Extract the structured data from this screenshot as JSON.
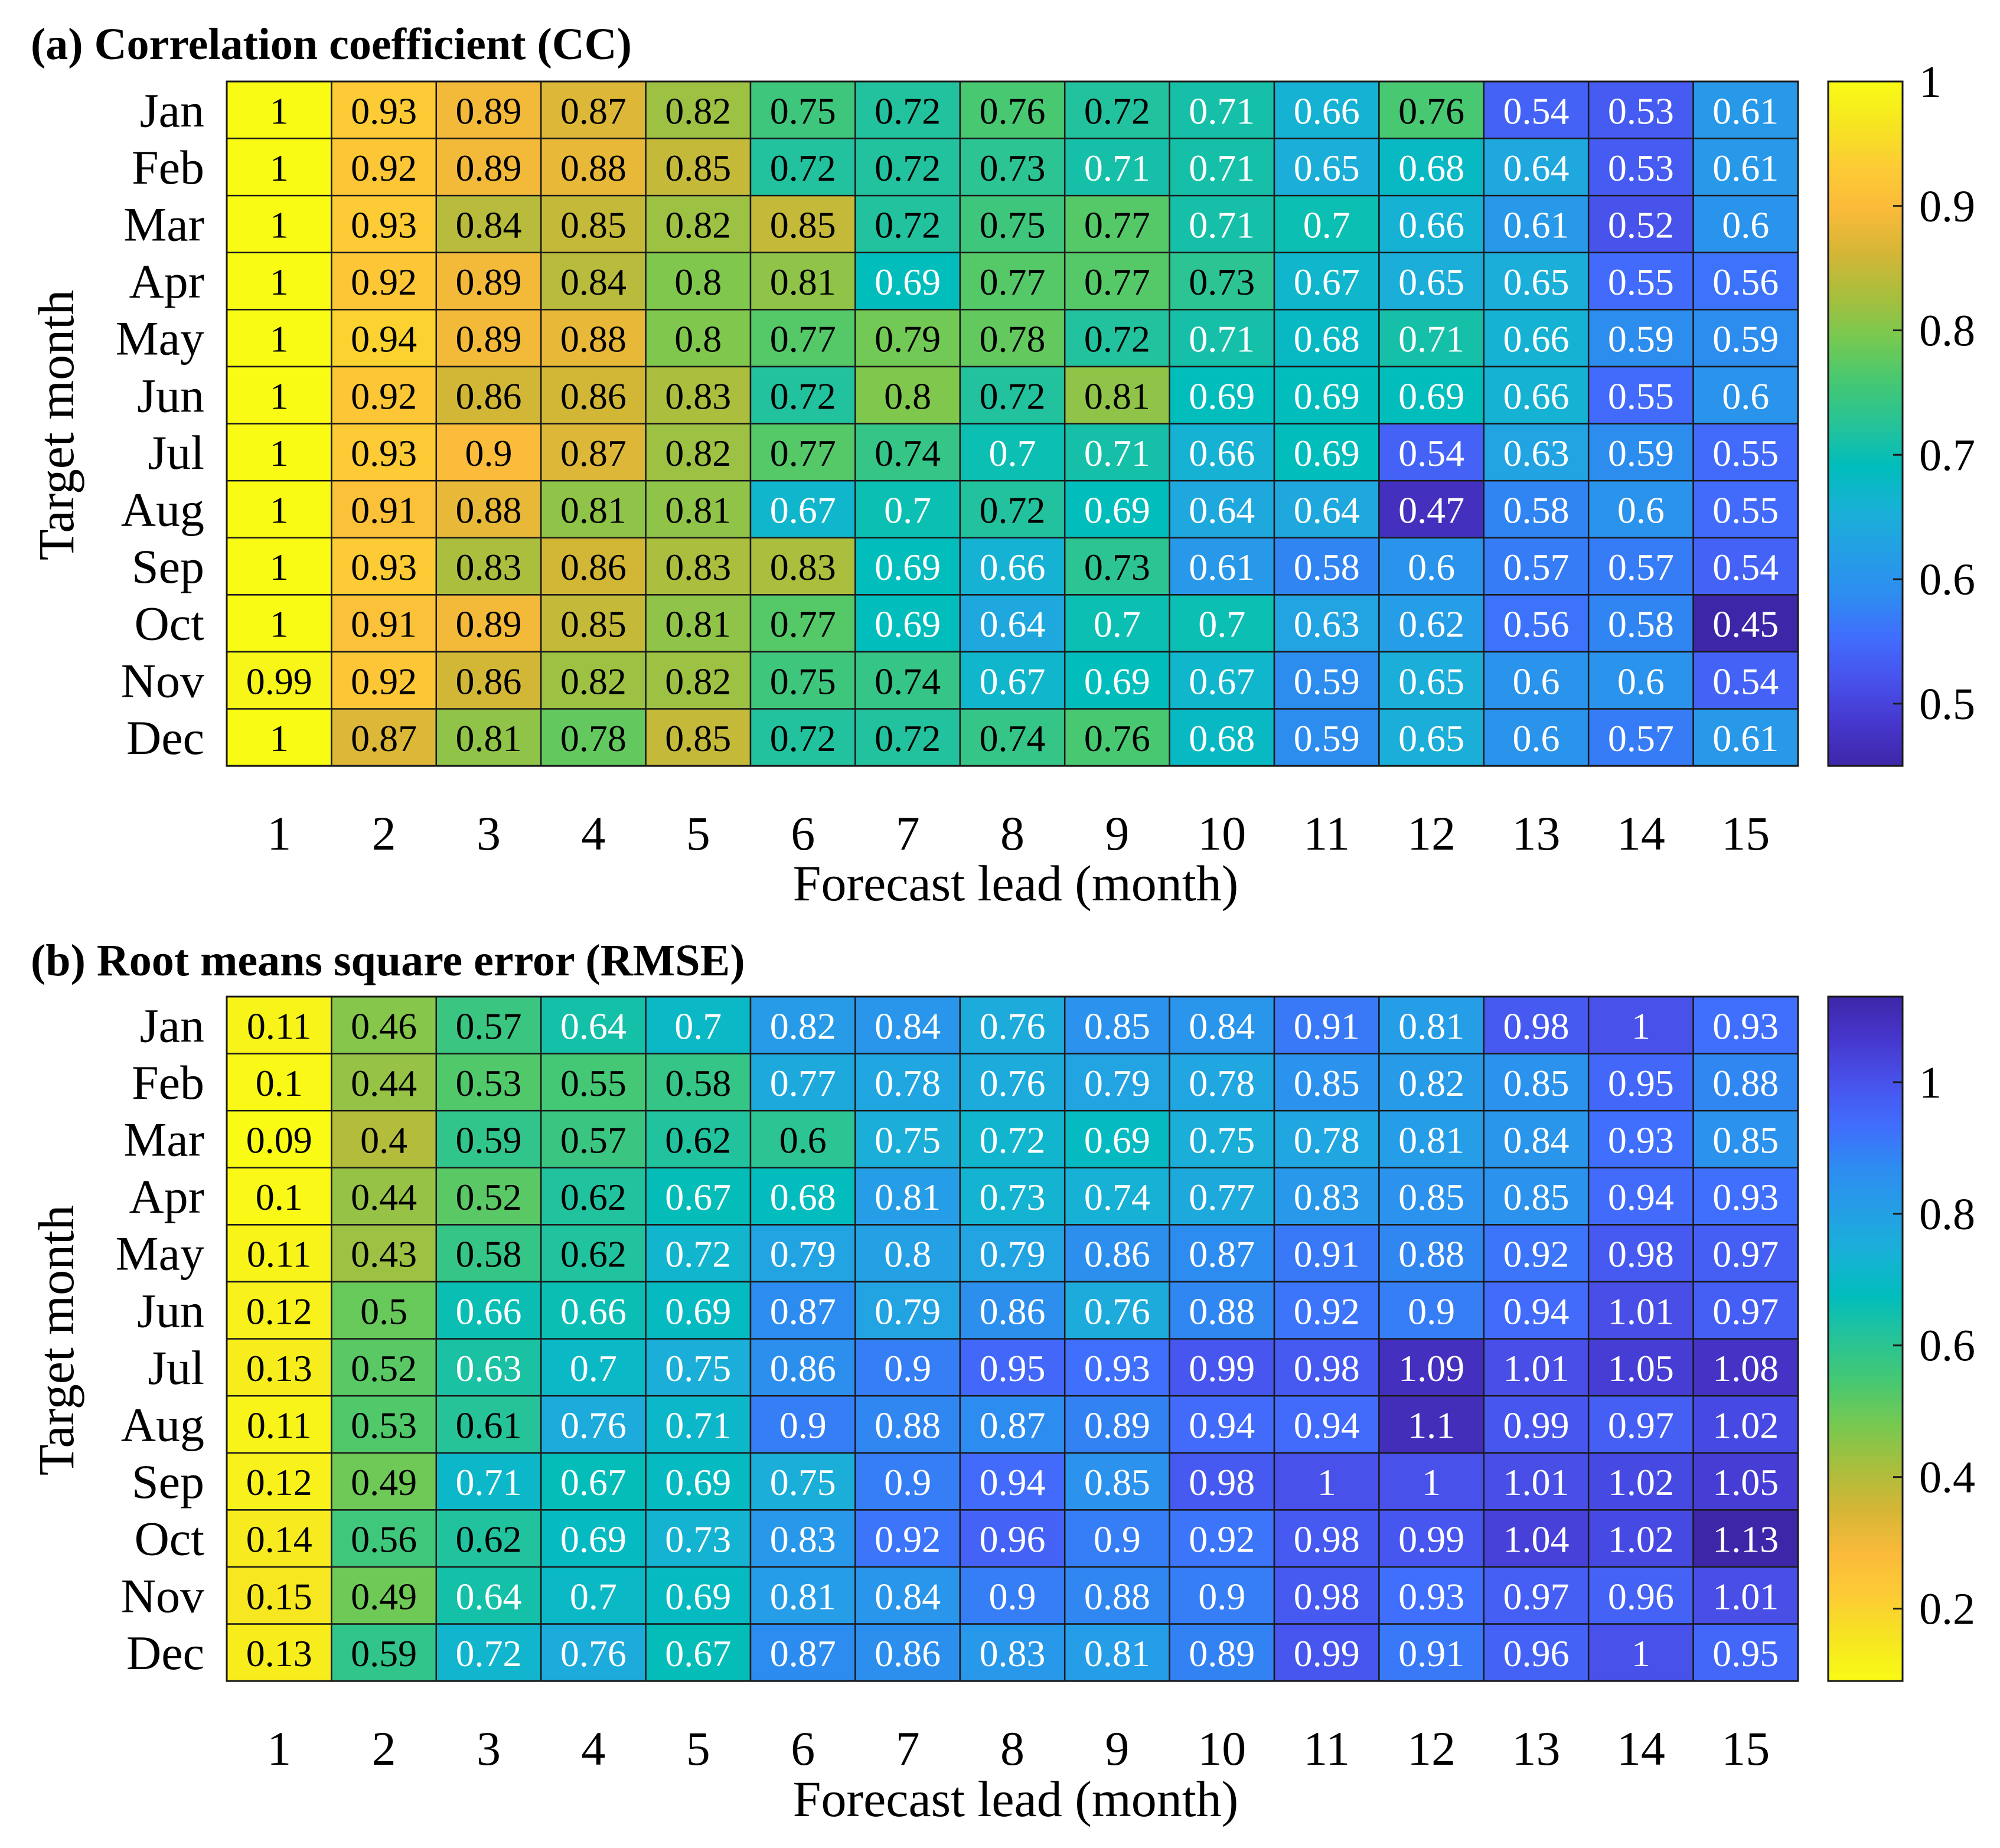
{
  "chart_data": [
    {
      "type": "heatmap",
      "title": "(a) Correlation coefficient (CC)",
      "xlabel": "Forecast lead (month)",
      "ylabel": "Target month",
      "x": [
        1,
        2,
        3,
        4,
        5,
        6,
        7,
        8,
        9,
        10,
        11,
        12,
        13,
        14,
        15
      ],
      "y": [
        "Jan",
        "Feb",
        "Mar",
        "Apr",
        "May",
        "Jun",
        "Jul",
        "Aug",
        "Sep",
        "Oct",
        "Nov",
        "Dec"
      ],
      "values": [
        [
          "1",
          "0.93",
          "0.89",
          "0.87",
          "0.82",
          "0.75",
          "0.72",
          "0.76",
          "0.72",
          "0.71",
          "0.66",
          "0.76",
          "0.54",
          "0.53",
          "0.61"
        ],
        [
          "1",
          "0.92",
          "0.89",
          "0.88",
          "0.85",
          "0.72",
          "0.72",
          "0.73",
          "0.71",
          "0.71",
          "0.65",
          "0.68",
          "0.64",
          "0.53",
          "0.61"
        ],
        [
          "1",
          "0.93",
          "0.84",
          "0.85",
          "0.82",
          "0.85",
          "0.72",
          "0.75",
          "0.77",
          "0.71",
          "0.7",
          "0.66",
          "0.61",
          "0.52",
          "0.6"
        ],
        [
          "1",
          "0.92",
          "0.89",
          "0.84",
          "0.8",
          "0.81",
          "0.69",
          "0.77",
          "0.77",
          "0.73",
          "0.67",
          "0.65",
          "0.65",
          "0.55",
          "0.56"
        ],
        [
          "1",
          "0.94",
          "0.89",
          "0.88",
          "0.8",
          "0.77",
          "0.79",
          "0.78",
          "0.72",
          "0.71",
          "0.68",
          "0.71",
          "0.66",
          "0.59",
          "0.59"
        ],
        [
          "1",
          "0.92",
          "0.86",
          "0.86",
          "0.83",
          "0.72",
          "0.8",
          "0.72",
          "0.81",
          "0.69",
          "0.69",
          "0.69",
          "0.66",
          "0.55",
          "0.6"
        ],
        [
          "1",
          "0.93",
          "0.9",
          "0.87",
          "0.82",
          "0.77",
          "0.74",
          "0.7",
          "0.71",
          "0.66",
          "0.69",
          "0.54",
          "0.63",
          "0.59",
          "0.55"
        ],
        [
          "1",
          "0.91",
          "0.88",
          "0.81",
          "0.81",
          "0.67",
          "0.7",
          "0.72",
          "0.69",
          "0.64",
          "0.64",
          "0.47",
          "0.58",
          "0.6",
          "0.55"
        ],
        [
          "1",
          "0.93",
          "0.83",
          "0.86",
          "0.83",
          "0.83",
          "0.69",
          "0.66",
          "0.73",
          "0.61",
          "0.58",
          "0.6",
          "0.57",
          "0.57",
          "0.54"
        ],
        [
          "1",
          "0.91",
          "0.89",
          "0.85",
          "0.81",
          "0.77",
          "0.69",
          "0.64",
          "0.7",
          "0.7",
          "0.63",
          "0.62",
          "0.56",
          "0.58",
          "0.45"
        ],
        [
          "0.99",
          "0.92",
          "0.86",
          "0.82",
          "0.82",
          "0.75",
          "0.74",
          "0.67",
          "0.69",
          "0.67",
          "0.59",
          "0.65",
          "0.6",
          "0.6",
          "0.54"
        ],
        [
          "1",
          "0.87",
          "0.81",
          "0.78",
          "0.85",
          "0.72",
          "0.72",
          "0.74",
          "0.76",
          "0.68",
          "0.59",
          "0.65",
          "0.6",
          "0.57",
          "0.61"
        ]
      ],
      "colorbar": {
        "colormap": "parula",
        "reversed": false,
        "range": [
          0.45,
          1.0
        ],
        "ticks": [
          "1",
          "0.9",
          "0.8",
          "0.7",
          "0.6",
          "0.5"
        ]
      }
    },
    {
      "type": "heatmap",
      "title": "(b) Root means square error (RMSE)",
      "xlabel": "Forecast lead (month)",
      "ylabel": "Target month",
      "x": [
        1,
        2,
        3,
        4,
        5,
        6,
        7,
        8,
        9,
        10,
        11,
        12,
        13,
        14,
        15
      ],
      "y": [
        "Jan",
        "Feb",
        "Mar",
        "Apr",
        "May",
        "Jun",
        "Jul",
        "Aug",
        "Sep",
        "Oct",
        "Nov",
        "Dec"
      ],
      "values": [
        [
          "0.11",
          "0.46",
          "0.57",
          "0.64",
          "0.7",
          "0.82",
          "0.84",
          "0.76",
          "0.85",
          "0.84",
          "0.91",
          "0.81",
          "0.98",
          "1",
          "0.93"
        ],
        [
          "0.1",
          "0.44",
          "0.53",
          "0.55",
          "0.58",
          "0.77",
          "0.78",
          "0.76",
          "0.79",
          "0.78",
          "0.85",
          "0.82",
          "0.85",
          "0.95",
          "0.88"
        ],
        [
          "0.09",
          "0.4",
          "0.59",
          "0.57",
          "0.62",
          "0.6",
          "0.75",
          "0.72",
          "0.69",
          "0.75",
          "0.78",
          "0.81",
          "0.84",
          "0.93",
          "0.85"
        ],
        [
          "0.1",
          "0.44",
          "0.52",
          "0.62",
          "0.67",
          "0.68",
          "0.81",
          "0.73",
          "0.74",
          "0.77",
          "0.83",
          "0.85",
          "0.85",
          "0.94",
          "0.93"
        ],
        [
          "0.11",
          "0.43",
          "0.58",
          "0.62",
          "0.72",
          "0.79",
          "0.8",
          "0.79",
          "0.86",
          "0.87",
          "0.91",
          "0.88",
          "0.92",
          "0.98",
          "0.97"
        ],
        [
          "0.12",
          "0.5",
          "0.66",
          "0.66",
          "0.69",
          "0.87",
          "0.79",
          "0.86",
          "0.76",
          "0.88",
          "0.92",
          "0.9",
          "0.94",
          "1.01",
          "0.97"
        ],
        [
          "0.13",
          "0.52",
          "0.63",
          "0.7",
          "0.75",
          "0.86",
          "0.9",
          "0.95",
          "0.93",
          "0.99",
          "0.98",
          "1.09",
          "1.01",
          "1.05",
          "1.08"
        ],
        [
          "0.11",
          "0.53",
          "0.61",
          "0.76",
          "0.71",
          "0.9",
          "0.88",
          "0.87",
          "0.89",
          "0.94",
          "0.94",
          "1.1",
          "0.99",
          "0.97",
          "1.02"
        ],
        [
          "0.12",
          "0.49",
          "0.71",
          "0.67",
          "0.69",
          "0.75",
          "0.9",
          "0.94",
          "0.85",
          "0.98",
          "1",
          "1",
          "1.01",
          "1.02",
          "1.05"
        ],
        [
          "0.14",
          "0.56",
          "0.62",
          "0.69",
          "0.73",
          "0.83",
          "0.92",
          "0.96",
          "0.9",
          "0.92",
          "0.98",
          "0.99",
          "1.04",
          "1.02",
          "1.13"
        ],
        [
          "0.15",
          "0.49",
          "0.64",
          "0.7",
          "0.69",
          "0.81",
          "0.84",
          "0.9",
          "0.88",
          "0.9",
          "0.98",
          "0.93",
          "0.97",
          "0.96",
          "1.01"
        ],
        [
          "0.13",
          "0.59",
          "0.72",
          "0.76",
          "0.67",
          "0.87",
          "0.86",
          "0.83",
          "0.81",
          "0.89",
          "0.99",
          "0.91",
          "0.96",
          "1",
          "0.95"
        ]
      ],
      "colorbar": {
        "colormap": "parula",
        "reversed": true,
        "range": [
          0.09,
          1.13
        ],
        "ticks": [
          "1",
          "0.8",
          "0.6",
          "0.4",
          "0.2"
        ]
      }
    }
  ]
}
